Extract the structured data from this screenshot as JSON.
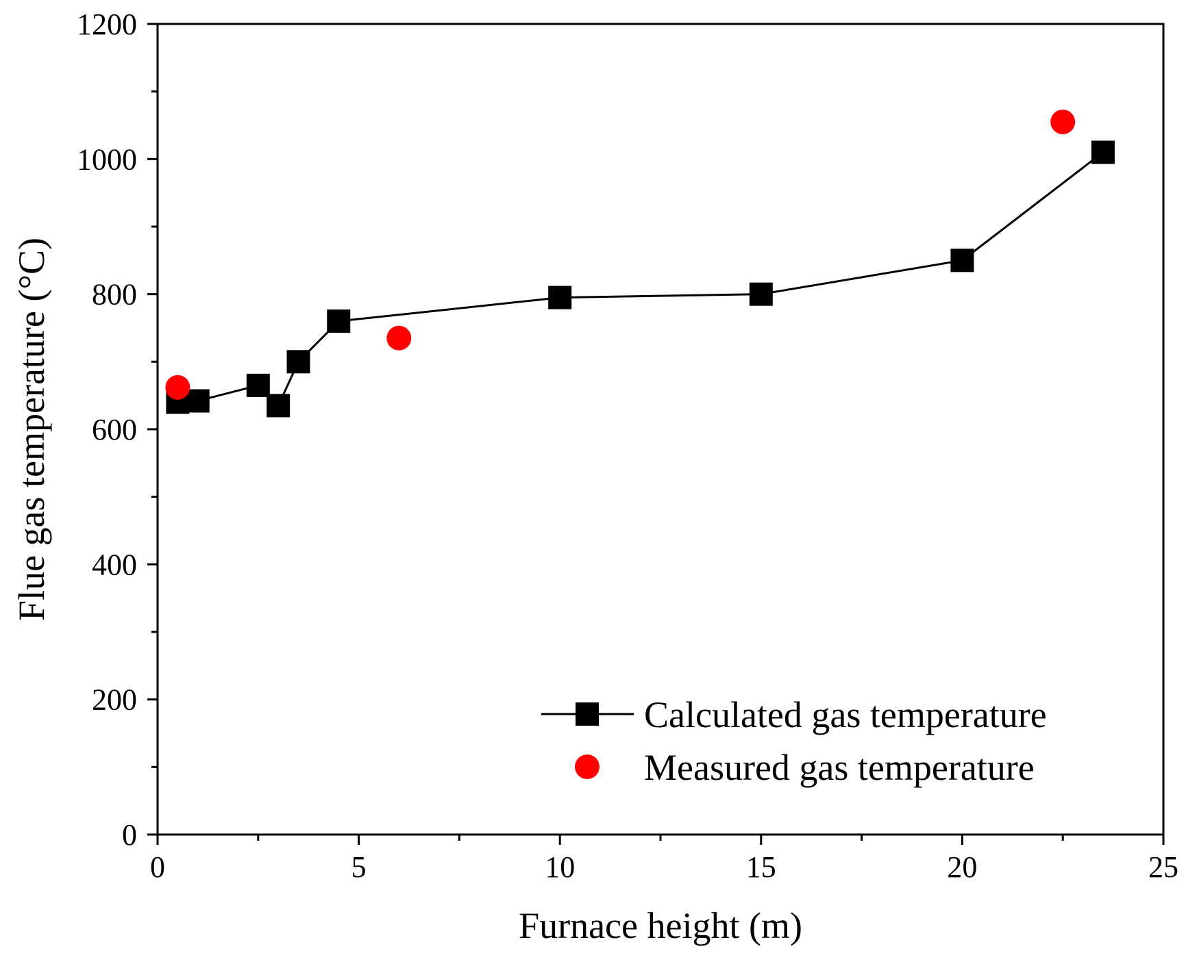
{
  "chart_data": {
    "type": "line",
    "title": "",
    "xlabel": "Furnace height (m)",
    "ylabel": "Flue gas temperature (°C)",
    "xlim": [
      0,
      25
    ],
    "ylim": [
      0,
      1200
    ],
    "x_major_ticks": [
      0,
      5,
      10,
      15,
      20,
      25
    ],
    "x_minor_ticks": [
      2.5,
      7.5,
      12.5,
      17.5,
      22.5
    ],
    "y_major_ticks": [
      0,
      200,
      400,
      600,
      800,
      1000,
      1200
    ],
    "y_minor_ticks": [
      100,
      300,
      500,
      700,
      900,
      1100
    ],
    "grid": false,
    "legend_position": "bottom-right",
    "series": [
      {
        "name": "Calculated gas temperature",
        "style": "line-square",
        "color": "#000000",
        "points": [
          {
            "x": 0.5,
            "y": 640
          },
          {
            "x": 1.0,
            "y": 642
          },
          {
            "x": 2.5,
            "y": 665
          },
          {
            "x": 3.0,
            "y": 635
          },
          {
            "x": 3.5,
            "y": 700
          },
          {
            "x": 4.5,
            "y": 760
          },
          {
            "x": 10.0,
            "y": 795
          },
          {
            "x": 15.0,
            "y": 800
          },
          {
            "x": 20.0,
            "y": 850
          },
          {
            "x": 23.5,
            "y": 1010
          }
        ]
      },
      {
        "name": "Measured gas temperature",
        "style": "circle",
        "color": "#ff0000",
        "points": [
          {
            "x": 0.5,
            "y": 662
          },
          {
            "x": 6.0,
            "y": 735
          },
          {
            "x": 22.5,
            "y": 1055
          }
        ]
      }
    ]
  }
}
